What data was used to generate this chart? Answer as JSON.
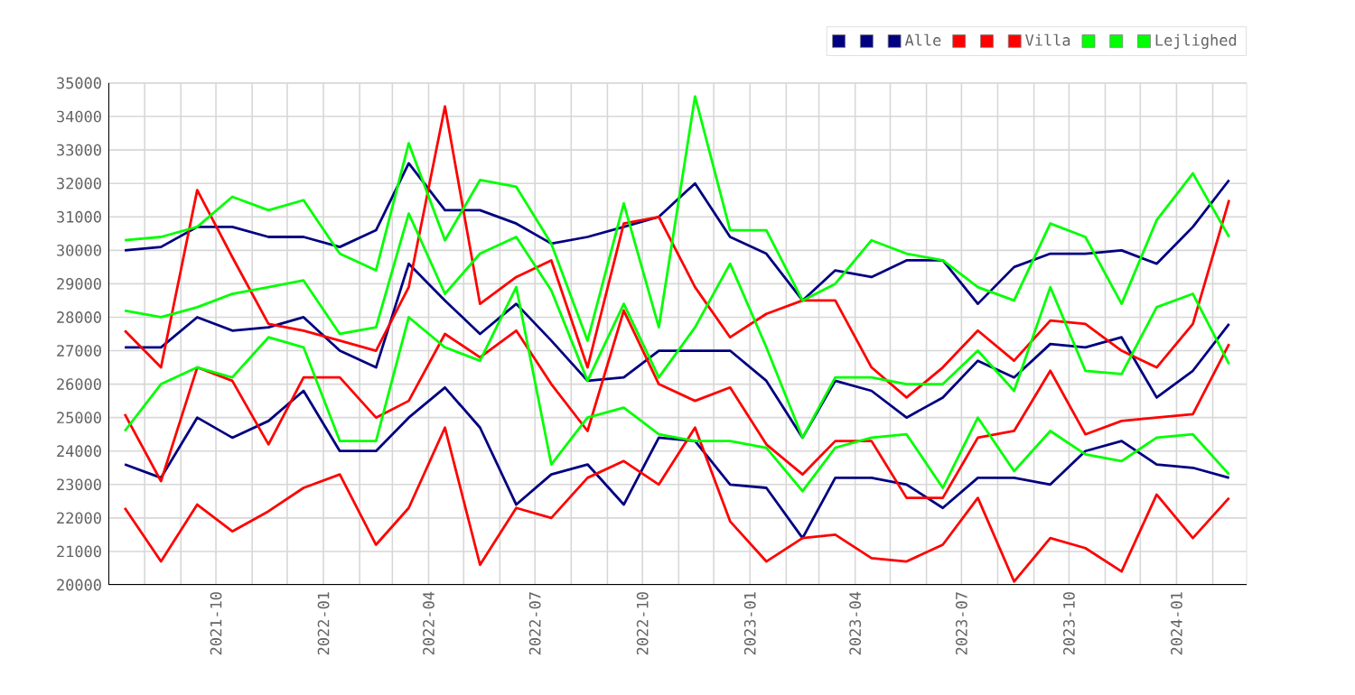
{
  "chart_data": {
    "type": "line",
    "x": [
      "2021-07-15",
      "2021-08-15",
      "2021-09-15",
      "2021-10-15",
      "2021-11-15",
      "2021-12-15",
      "2022-01-15",
      "2022-02-15",
      "2022-03-15",
      "2022-04-15",
      "2022-05-15",
      "2022-06-15",
      "2022-07-15",
      "2022-08-15",
      "2022-09-15",
      "2022-10-15",
      "2022-11-15",
      "2022-12-15",
      "2023-01-15",
      "2023-02-15",
      "2023-03-15",
      "2023-04-15",
      "2023-05-15",
      "2023-06-15",
      "2023-07-15",
      "2023-08-15",
      "2023-09-15",
      "2023-10-15",
      "2023-11-15",
      "2023-12-15",
      "2024-01-15",
      "2024-02-15"
    ],
    "series": [
      {
        "color": "#000080",
        "values": [
          30000,
          30100,
          30700,
          30700,
          30400,
          30400,
          30100,
          30600,
          32600,
          31200,
          31200,
          30800,
          30200,
          30400,
          30700,
          31000,
          32000,
          30400,
          29900,
          28500,
          29400,
          29200,
          29700,
          29700,
          28400,
          29500,
          29900,
          29900,
          30000,
          29600,
          30700,
          32100
        ]
      },
      {
        "color": "#000080",
        "values": [
          27100,
          27100,
          28000,
          27600,
          27700,
          28000,
          27000,
          26500,
          29600,
          28500,
          27500,
          28400,
          27300,
          26100,
          26200,
          27000,
          27000,
          27000,
          26100,
          24400,
          26100,
          25800,
          25000,
          25600,
          26700,
          26200,
          27200,
          27100,
          27400,
          25600,
          26400,
          27800
        ]
      },
      {
        "name": "Alle",
        "color": "#000080",
        "values": [
          23600,
          23200,
          25000,
          24400,
          24900,
          25800,
          24000,
          24000,
          25000,
          25900,
          24700,
          22400,
          23300,
          23600,
          22400,
          24400,
          24300,
          23000,
          22900,
          21400,
          23200,
          23200,
          23000,
          22300,
          23200,
          23200,
          23000,
          24000,
          24300,
          23600,
          23500,
          23200
        ]
      },
      {
        "color": "#ff0000",
        "values": [
          27600,
          26500,
          31800,
          29800,
          27800,
          27600,
          27300,
          27000,
          28900,
          34300,
          28400,
          29200,
          29700,
          26500,
          30800,
          31000,
          28900,
          27400,
          28100,
          28500,
          28500,
          26500,
          25600,
          26500,
          27600,
          26700,
          27900,
          27800,
          27000,
          26500,
          27800,
          31500
        ]
      },
      {
        "color": "#ff0000",
        "values": [
          25100,
          23100,
          26500,
          26100,
          24200,
          26200,
          26200,
          25000,
          25500,
          27500,
          26800,
          27600,
          26000,
          24600,
          28200,
          26000,
          25500,
          25900,
          24200,
          23300,
          24300,
          24300,
          22600,
          22600,
          24400,
          24600,
          26400,
          24500,
          24900,
          25000,
          25100,
          27200
        ]
      },
      {
        "name": "Villa",
        "color": "#ff0000",
        "values": [
          22300,
          20700,
          22400,
          21600,
          22200,
          22900,
          23300,
          21200,
          22300,
          24700,
          20600,
          22300,
          22000,
          23200,
          23700,
          23000,
          24700,
          21900,
          20700,
          21400,
          21500,
          20800,
          20700,
          21200,
          22600,
          20100,
          21400,
          21100,
          20400,
          22700,
          21400,
          22600
        ]
      },
      {
        "color": "#00ff00",
        "values": [
          30300,
          30400,
          30700,
          31600,
          31200,
          31500,
          29900,
          29400,
          33200,
          30300,
          32100,
          31900,
          30200,
          27300,
          31400,
          27700,
          34600,
          30600,
          30600,
          28500,
          29000,
          30300,
          29900,
          29700,
          28900,
          28500,
          30800,
          30400,
          28400,
          30900,
          32300,
          30400
        ]
      },
      {
        "color": "#00ff00",
        "values": [
          28200,
          28000,
          28300,
          28700,
          28900,
          29100,
          27500,
          27700,
          31100,
          28700,
          29900,
          30400,
          28800,
          26100,
          28400,
          26200,
          27700,
          29600,
          27100,
          24400,
          26200,
          26200,
          26000,
          26000,
          27000,
          25800,
          28900,
          26400,
          26300,
          28300,
          28700,
          26600
        ]
      },
      {
        "name": "Lejlighed",
        "color": "#00ff00",
        "values": [
          24600,
          26000,
          26500,
          26200,
          27400,
          27100,
          24300,
          24300,
          28000,
          27100,
          26700,
          28900,
          23600,
          25000,
          25300,
          24500,
          24300,
          24300,
          24100,
          22800,
          24100,
          24400,
          24500,
          22900,
          25000,
          23400,
          24600,
          23900,
          23700,
          24400,
          24500,
          23300
        ]
      }
    ],
    "xlim": [
      "2021-07-01",
      "2024-03-01"
    ],
    "xticks": [
      {
        "value": "2021-08",
        "label": null
      },
      {
        "value": "2021-09",
        "label": null
      },
      "2021-10",
      {
        "value": "2021-11",
        "label": null
      },
      {
        "value": "2021-12",
        "label": null
      },
      "2022-01",
      {
        "value": "2022-02",
        "label": null
      },
      {
        "value": "2022-03",
        "label": null
      },
      "2022-04",
      {
        "value": "2022-05",
        "label": null
      },
      {
        "value": "2022-06",
        "label": null
      },
      "2022-07",
      {
        "value": "2022-08",
        "label": null
      },
      {
        "value": "2022-09",
        "label": null
      },
      "2022-10",
      {
        "value": "2022-11",
        "label": null
      },
      {
        "value": "2022-12",
        "label": null
      },
      "2023-01",
      {
        "value": "2023-02",
        "label": null
      },
      {
        "value": "2023-03",
        "label": null
      },
      "2023-04",
      {
        "value": "2023-05",
        "label": null
      },
      {
        "value": "2023-06",
        "label": null
      },
      "2023-07",
      {
        "value": "2023-08",
        "label": null
      },
      {
        "value": "2023-09",
        "label": null
      },
      "2023-10",
      {
        "value": "2023-11",
        "label": null
      },
      {
        "value": "2023-12",
        "label": null
      },
      "2024-01",
      {
        "value": "2024-02",
        "label": null
      }
    ],
    "ylim": [
      20000,
      35000
    ],
    "yticks": [
      20000,
      21000,
      22000,
      23000,
      24000,
      25000,
      26000,
      27000,
      28000,
      29000,
      30000,
      31000,
      32000,
      33000,
      34000,
      35000
    ],
    "grid": true,
    "legend": "top right",
    "marker": "none",
    "line_style": "solid"
  }
}
